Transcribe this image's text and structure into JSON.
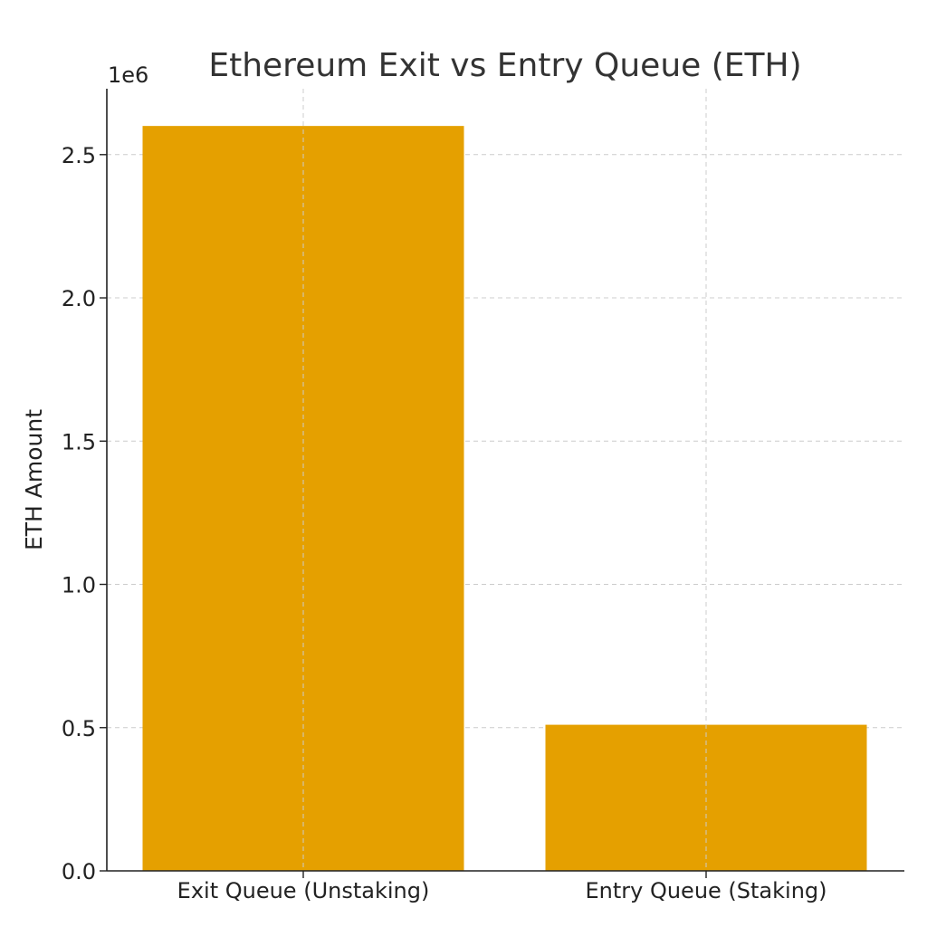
{
  "chart_data": {
    "type": "bar",
    "title": "Ethereum Exit vs Entry Queue (ETH)",
    "xlabel": "",
    "ylabel": "ETH Amount",
    "offset_label": "1e6",
    "categories": [
      "Exit Queue (Unstaking)",
      "Entry Queue (Staking)"
    ],
    "values": [
      2600000,
      510000
    ],
    "ylim": [
      0,
      2730000
    ],
    "yticks": [
      0,
      500000,
      1000000,
      1500000,
      2000000,
      2500000
    ],
    "ytick_labels": [
      "0.0",
      "0.5",
      "1.0",
      "1.5",
      "2.0",
      "2.5"
    ],
    "grid": true,
    "bar_color": "#e5a000"
  }
}
